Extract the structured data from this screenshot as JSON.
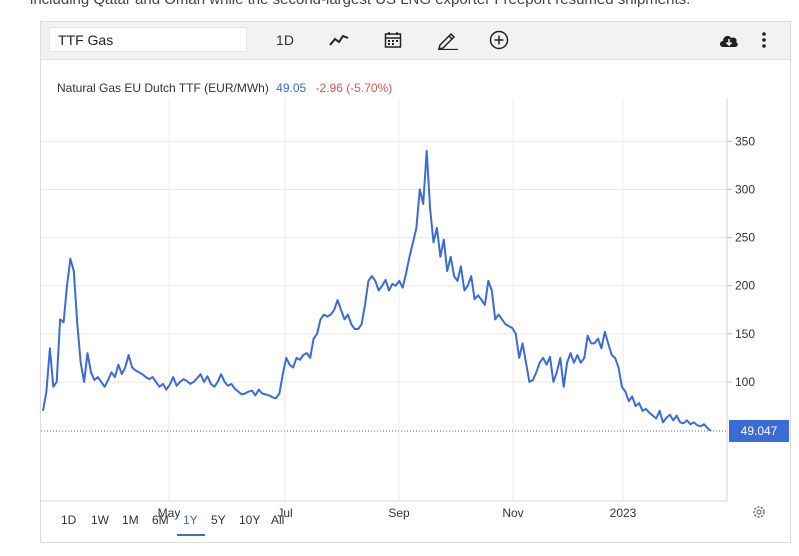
{
  "page": {
    "top_text": "including Qatar and Oman while the second-largest US LNG exporter Freeport resumed shipments."
  },
  "toolbar": {
    "symbol_value": "TTF Gas",
    "interval_label": "1D",
    "icons": [
      "line-chart-icon",
      "calendar-icon",
      "draw-pencil-icon",
      "add-circle-icon",
      "cloud-download-icon",
      "more-vertical-icon"
    ]
  },
  "header": {
    "name": "Natural Gas EU Dutch TTF (EUR/MWh)",
    "last": "49.05",
    "change": "-2.96 (-5.70%)"
  },
  "colors": {
    "line": "#3b6bd6",
    "change_negative": "#d9534f",
    "price_badge": "#3b6bd6",
    "grid": "#e9e9e9"
  },
  "range": {
    "buttons": [
      "1D",
      "1W",
      "1M",
      "6M",
      "1Y",
      "5Y",
      "10Y",
      "All"
    ],
    "active": "1Y"
  },
  "chart_data": {
    "type": "line",
    "title": "Natural Gas EU Dutch TTF (EUR/MWh)",
    "xlabel": "",
    "ylabel": "",
    "x_tick_labels": [
      "Jul",
      "May",
      "Jul",
      "Sep",
      "Nov",
      "2023"
    ],
    "x_ticks_shown": [
      "May",
      "Jul",
      "Sep",
      "Nov",
      "2023"
    ],
    "y_ticks": [
      100,
      150,
      200,
      250,
      300,
      350
    ],
    "ylim": [
      -5,
      395
    ],
    "grid": true,
    "last_value_label": "49.047",
    "series": [
      {
        "values": [
          70,
          90,
          135,
          95,
          100,
          165,
          162,
          200,
          228,
          215,
          160,
          120,
          100,
          130,
          110,
          102,
          105,
          100,
          95,
          102,
          110,
          105,
          118,
          108,
          115,
          128,
          115,
          112,
          110,
          108,
          105,
          103,
          105,
          100,
          95,
          98,
          92,
          97,
          105,
          96,
          100,
          103,
          101,
          98,
          100,
          104,
          108,
          100,
          106,
          98,
          95,
          100,
          108,
          100,
          96,
          98,
          93,
          90,
          87,
          88,
          90,
          91,
          86,
          92,
          88,
          87,
          86,
          84,
          83,
          88,
          108,
          125,
          118,
          115,
          125,
          123,
          128,
          130,
          125,
          145,
          150,
          165,
          170,
          168,
          170,
          175,
          185,
          175,
          165,
          170,
          160,
          155,
          155,
          160,
          180,
          205,
          210,
          205,
          195,
          200,
          206,
          195,
          202,
          200,
          205,
          198,
          213,
          230,
          245,
          260,
          300,
          285,
          340,
          280,
          245,
          260,
          230,
          248,
          215,
          230,
          210,
          205,
          220,
          195,
          200,
          210,
          186,
          190,
          185,
          180,
          205,
          195,
          165,
          170,
          165,
          160,
          158,
          156,
          150,
          125,
          140,
          120,
          100,
          102,
          110,
          120,
          125,
          118,
          126,
          100,
          110,
          125,
          95,
          120,
          130,
          120,
          128,
          120,
          125,
          148,
          140,
          140,
          145,
          135,
          152,
          140,
          128,
          125,
          115,
          95,
          90,
          80,
          85,
          75,
          78,
          70,
          72,
          68,
          65,
          62,
          70,
          58,
          63,
          66,
          60,
          65,
          58,
          57,
          60,
          56,
          58,
          55,
          54,
          56,
          52,
          49
        ]
      }
    ]
  }
}
